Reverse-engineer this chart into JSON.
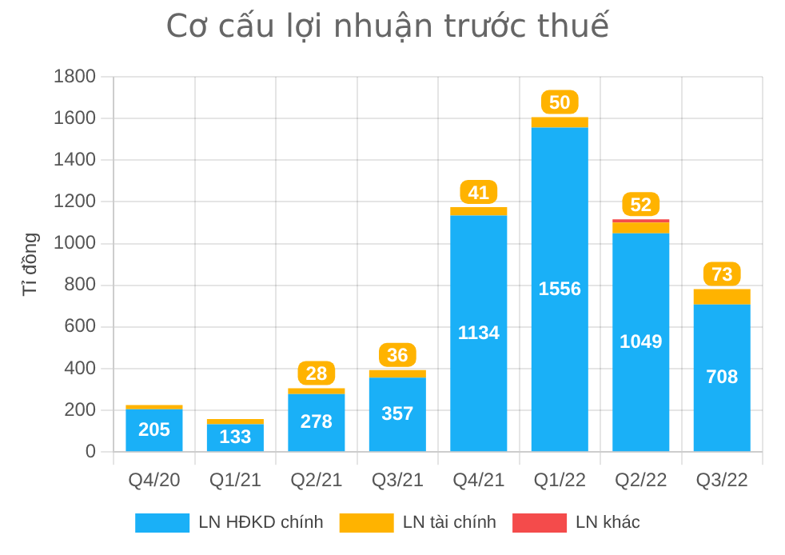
{
  "chart_data": {
    "type": "bar",
    "title": "Cơ cấu lợi nhuận trước thuế",
    "ylabel": "Tỉ đồng",
    "stacked": true,
    "grid": true,
    "legend": "bottom",
    "categories": [
      "Q4/20",
      "Q1/21",
      "Q2/21",
      "Q3/21",
      "Q4/21",
      "Q1/22",
      "Q2/22",
      "Q3/22"
    ],
    "ylim": [
      0,
      1800
    ],
    "yticks": [
      0,
      200,
      400,
      600,
      800,
      1000,
      1200,
      1400,
      1600,
      1800
    ],
    "series": [
      {
        "name": "LN HĐKD chính",
        "color": "#1ab0f7",
        "values": [
          205,
          133,
          278,
          357,
          1134,
          1556,
          1049,
          708
        ],
        "value_labels": [
          "205",
          "133",
          "278",
          "357",
          "1134",
          "1556",
          "1049",
          "708"
        ]
      },
      {
        "name": "LN tài chính",
        "color": "#ffb300",
        "values": [
          20,
          25,
          28,
          36,
          41,
          50,
          52,
          73
        ],
        "value_labels": [
          null,
          null,
          "28",
          "36",
          "41",
          "50",
          "52",
          "73"
        ]
      },
      {
        "name": "LN khác",
        "color": "#f44b4b",
        "values": [
          null,
          null,
          null,
          null,
          null,
          null,
          15,
          null
        ]
      }
    ]
  }
}
